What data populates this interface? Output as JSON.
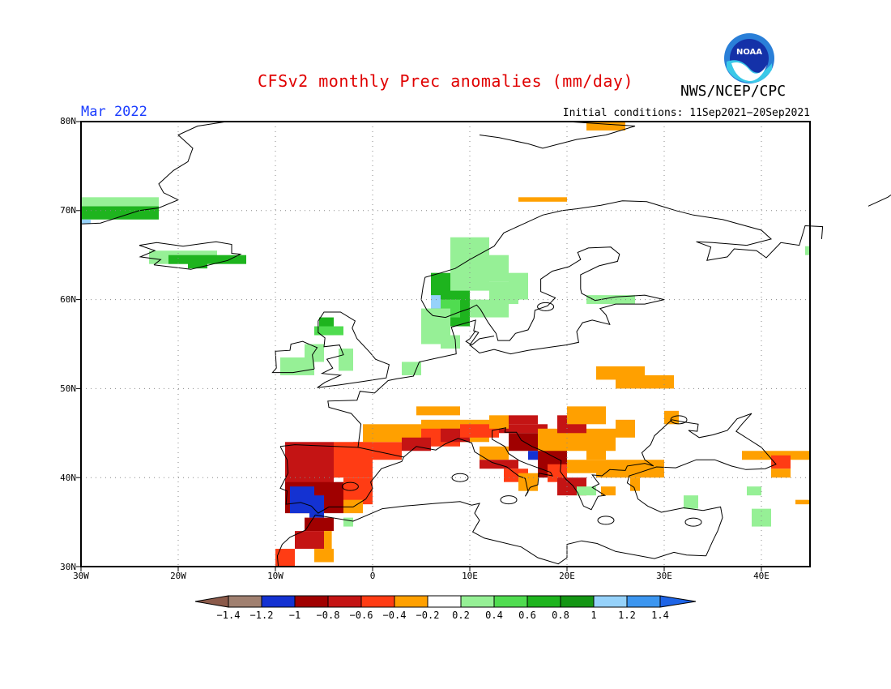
{
  "header": {
    "title": "CFSv2 monthly Prec anomalies (mm/day)",
    "agency": "NWS/NCEP/CPC",
    "logo_text": "NOAA",
    "month": "Mar 2022",
    "initial_conditions": "Initial conditions: 11Sep2021−20Sep2021"
  },
  "axes": {
    "lat_labels": [
      "80N",
      "70N",
      "60N",
      "50N",
      "40N",
      "30N"
    ],
    "lon_labels": [
      "30W",
      "20W",
      "10W",
      "0",
      "10E",
      "20E",
      "30E",
      "40E"
    ]
  },
  "colorbar": {
    "labels": [
      "−1.4",
      "−1.2",
      "−1",
      "−0.8",
      "−0.6",
      "−0.4",
      "−0.2",
      "0.2",
      "0.4",
      "0.6",
      "0.8",
      "1",
      "1.2",
      "1.4"
    ],
    "colors": [
      "#8b5a4a",
      "#a08070",
      "#1432d2",
      "#a00000",
      "#c41414",
      "#ff3c14",
      "#ffa000",
      "#ffffff",
      "#96f096",
      "#50dc50",
      "#1eb41e",
      "#149614",
      "#96d2fa",
      "#3c96f0",
      "#1e64e6"
    ]
  },
  "colors": {
    "title": "#e00000",
    "month": "#1a3cff",
    "grid": "#888888"
  }
}
